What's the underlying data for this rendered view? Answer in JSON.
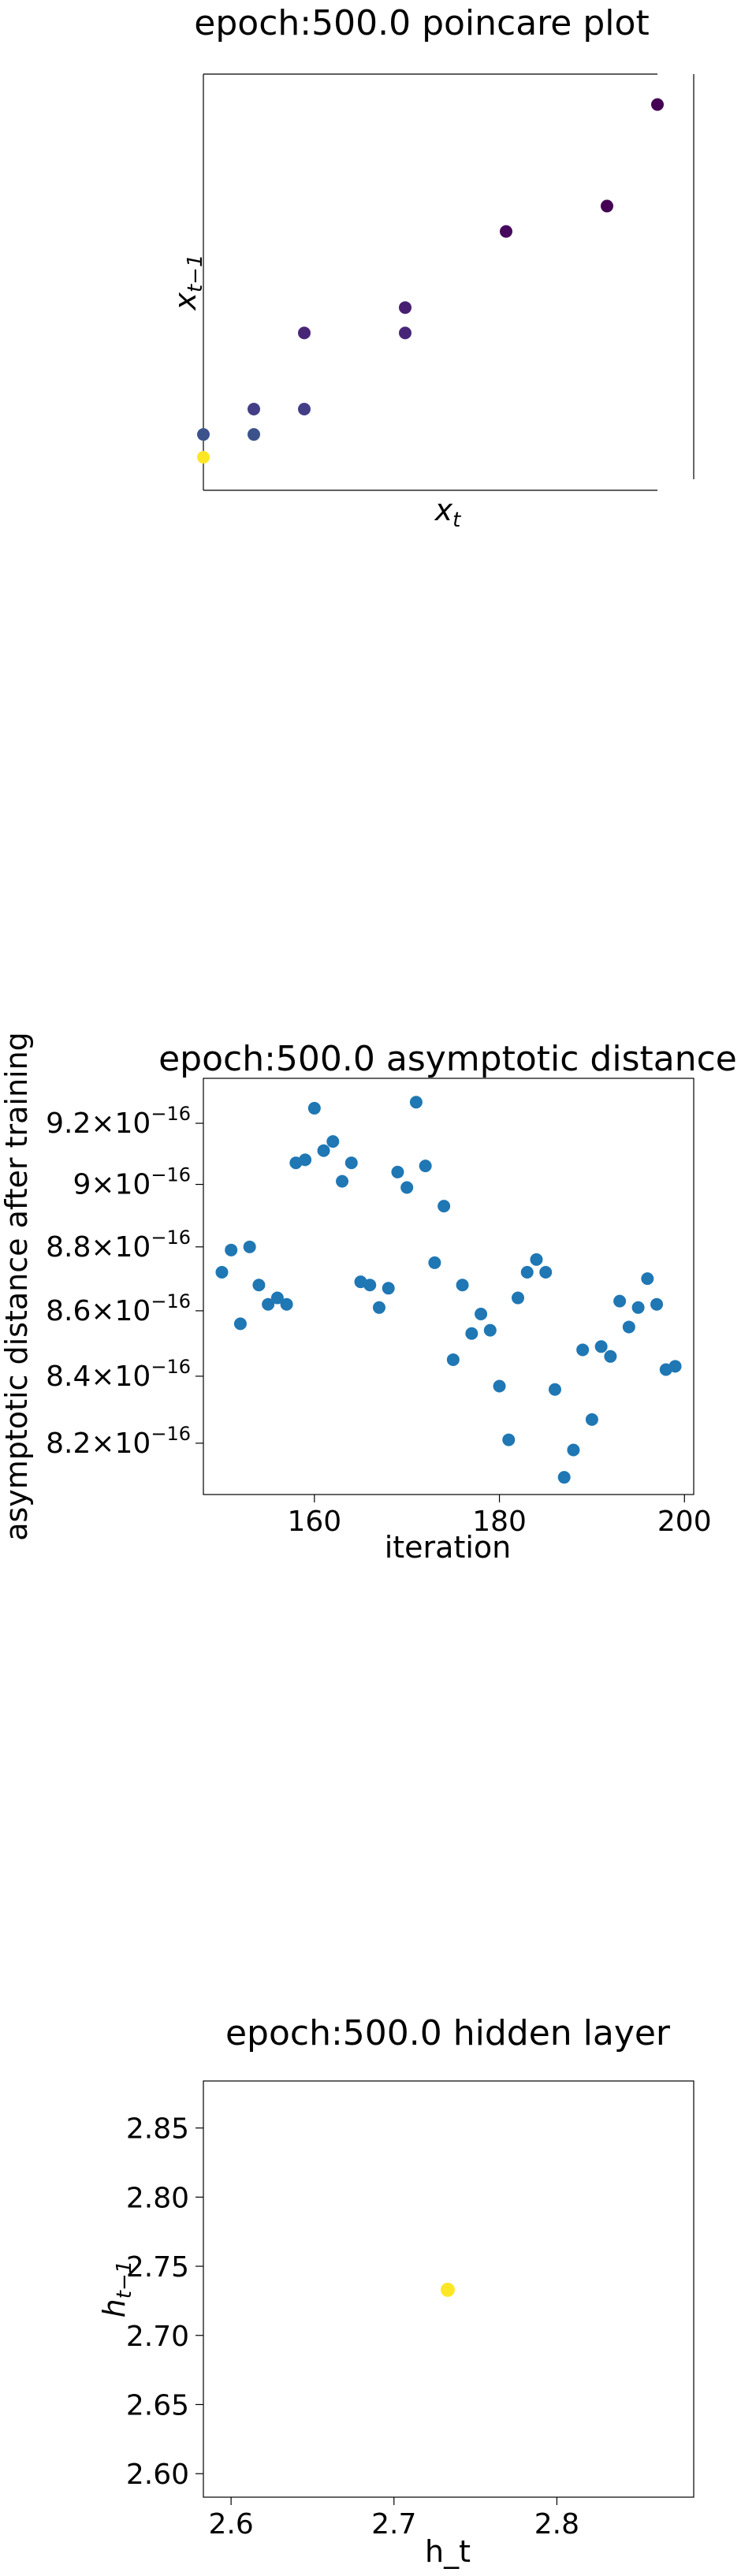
{
  "chart_data": [
    {
      "type": "scatter",
      "title": "epoch:500.0 poincare plot",
      "xlabel": "x_t",
      "ylabel": "x_{t−1}",
      "xlim": [
        0,
        9
      ],
      "ylim": [
        0,
        8.2
      ],
      "points": [
        {
          "x": 0.0,
          "y": 1.1,
          "color": "#3b528b"
        },
        {
          "x": 0.0,
          "y": 0.65,
          "color": "#fde725"
        },
        {
          "x": 1.0,
          "y": 1.6,
          "color": "#433e85"
        },
        {
          "x": 1.0,
          "y": 1.1,
          "color": "#3b528b"
        },
        {
          "x": 2.0,
          "y": 3.1,
          "color": "#482677"
        },
        {
          "x": 2.0,
          "y": 1.6,
          "color": "#433e85"
        },
        {
          "x": 4.0,
          "y": 3.6,
          "color": "#481f70"
        },
        {
          "x": 4.0,
          "y": 3.1,
          "color": "#482677"
        },
        {
          "x": 6.0,
          "y": 5.1,
          "color": "#46085c"
        },
        {
          "x": 8.0,
          "y": 5.6,
          "color": "#440154"
        },
        {
          "x": 9.0,
          "y": 7.6,
          "color": "#440154"
        }
      ]
    },
    {
      "type": "scatter",
      "title": "epoch:500.0 asymptotic distance",
      "xlabel": "iteration",
      "ylabel": "asymptotic distance after training",
      "log_y": true,
      "xlim": [
        148,
        201
      ],
      "ylim": [
        8.05e-16,
        9.35e-16
      ],
      "xticks": [
        160,
        180,
        200
      ],
      "yticks": [
        {
          "value": 8.2e-16,
          "mantissa": "8.2",
          "exponent": "−16"
        },
        {
          "value": 8.4e-16,
          "mantissa": "8.4",
          "exponent": "−16"
        },
        {
          "value": 8.6e-16,
          "mantissa": "8.6",
          "exponent": "−16"
        },
        {
          "value": 8.8e-16,
          "mantissa": "8.8",
          "exponent": "−16"
        },
        {
          "value": 9e-16,
          "mantissa": "9",
          "exponent": "−16"
        },
        {
          "value": 9.2e-16,
          "mantissa": "9.2",
          "exponent": "−16"
        }
      ],
      "color": "#1f77b4",
      "x": [
        150,
        151,
        152,
        153,
        154,
        155,
        156,
        157,
        158,
        159,
        160,
        161,
        162,
        163,
        164,
        165,
        166,
        167,
        168,
        169,
        170,
        171,
        172,
        173,
        174,
        175,
        176,
        177,
        178,
        179,
        180,
        181,
        182,
        183,
        184,
        185,
        186,
        187,
        188,
        189,
        190,
        191,
        192,
        193,
        194,
        195,
        196,
        197,
        198,
        199
      ],
      "y": [
        8.72e-16,
        8.79e-16,
        8.56e-16,
        8.8e-16,
        8.68e-16,
        8.62e-16,
        8.64e-16,
        8.62e-16,
        9.07e-16,
        9.08e-16,
        9.25e-16,
        9.11e-16,
        9.14e-16,
        9.01e-16,
        9.07e-16,
        8.69e-16,
        8.68e-16,
        8.61e-16,
        8.67e-16,
        9.04e-16,
        8.99e-16,
        9.27e-16,
        9.06e-16,
        8.75e-16,
        8.93e-16,
        8.45e-16,
        8.68e-16,
        8.53e-16,
        8.59e-16,
        8.54e-16,
        8.37e-16,
        8.21e-16,
        8.64e-16,
        8.72e-16,
        8.76e-16,
        8.72e-16,
        8.36e-16,
        8.1e-16,
        8.18e-16,
        8.48e-16,
        8.27e-16,
        8.49e-16,
        8.46e-16,
        8.63e-16,
        8.55e-16,
        8.61e-16,
        8.7e-16,
        8.62e-16,
        8.42e-16,
        8.43e-16
      ]
    },
    {
      "type": "scatter",
      "title": "epoch:500.0 hidden layer",
      "xlabel": "h_t",
      "ylabel": "h_{t−1}",
      "xlim": [
        2.583,
        2.884
      ],
      "ylim": [
        2.583,
        2.884
      ],
      "xticks": [
        "2.6",
        "2.7",
        "2.8"
      ],
      "yticks": [
        "2.60",
        "2.65",
        "2.70",
        "2.75",
        "2.80",
        "2.85"
      ],
      "points": [
        {
          "x": 2.733,
          "y": 2.733,
          "color": "#fde725"
        }
      ]
    }
  ]
}
